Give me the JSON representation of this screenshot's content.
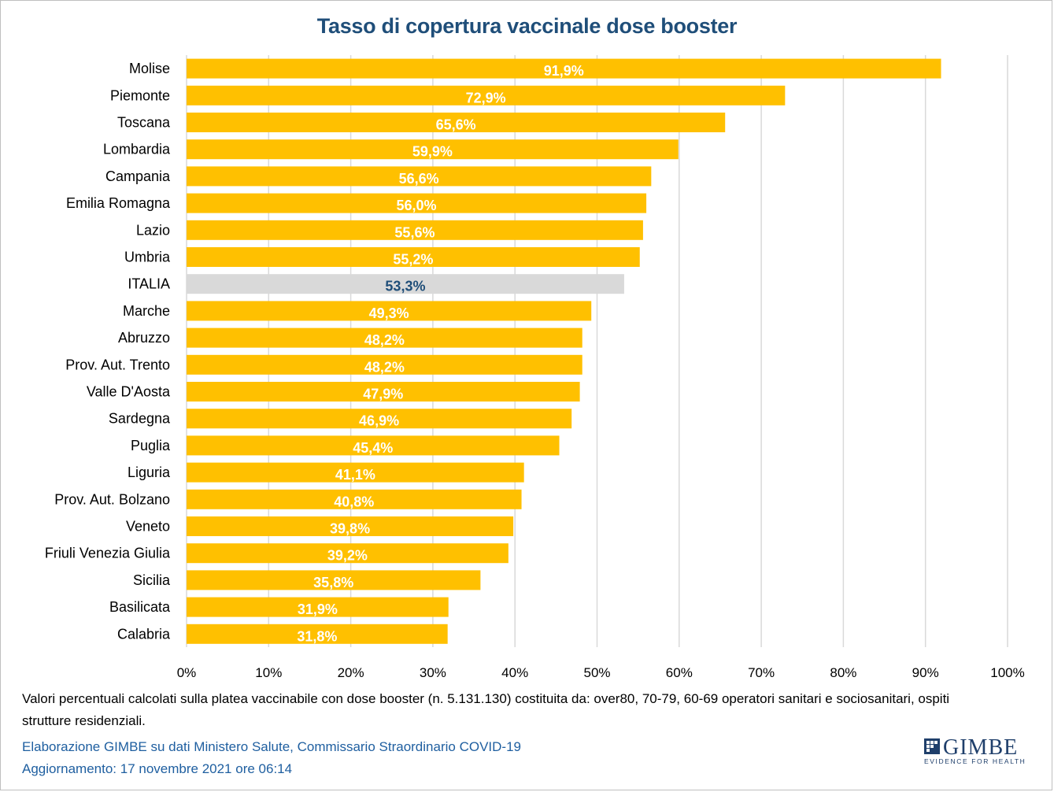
{
  "chart_data": {
    "type": "bar",
    "orientation": "horizontal",
    "title": "Tasso di copertura vaccinale dose booster",
    "categories": [
      "Molise",
      "Piemonte",
      "Toscana",
      "Lombardia",
      "Campania",
      "Emilia Romagna",
      "Lazio",
      "Umbria",
      "ITALIA",
      "Marche",
      "Abruzzo",
      "Prov. Aut. Trento",
      "Valle D'Aosta",
      "Sardegna",
      "Puglia",
      "Liguria",
      "Prov. Aut. Bolzano",
      "Veneto",
      "Friuli Venezia Giulia",
      "Sicilia",
      "Basilicata",
      "Calabria"
    ],
    "values": [
      91.9,
      72.9,
      65.6,
      59.9,
      56.6,
      56.0,
      55.6,
      55.2,
      53.3,
      49.3,
      48.2,
      48.2,
      47.9,
      46.9,
      45.4,
      41.1,
      40.8,
      39.8,
      39.2,
      35.8,
      31.9,
      31.8
    ],
    "data_labels": [
      "91,9%",
      "72,9%",
      "65,6%",
      "59,9%",
      "56,6%",
      "56,0%",
      "55,6%",
      "55,2%",
      "53,3%",
      "49,3%",
      "48,2%",
      "48,2%",
      "47,9%",
      "46,9%",
      "45,4%",
      "41,1%",
      "40,8%",
      "39,8%",
      "39,2%",
      "35,8%",
      "31,9%",
      "31,8%"
    ],
    "highlight_category": "ITALIA",
    "xlim": [
      0,
      100
    ],
    "x_ticks": [
      "0%",
      "10%",
      "20%",
      "30%",
      "40%",
      "50%",
      "60%",
      "70%",
      "80%",
      "90%",
      "100%"
    ],
    "grid": "vertical",
    "colors": {
      "bar": "#ffc000",
      "highlight_bar": "#d9d9d9",
      "label": "#ffffff",
      "highlight_label": "#1f4e79",
      "grid": "#d9d9d9",
      "title": "#1f4e79"
    }
  },
  "footnote": "Valori percentuali calcolati sulla platea vaccinabile con dose booster (n. 5.131.130) costituita da: over80, 70-79, 60-69 operatori sanitari e sociosanitari, ospiti strutture residenziali.",
  "credits": {
    "source": "Elaborazione GIMBE su dati Ministero Salute, Commissario Straordinario COVID-19",
    "updated": "Aggiornamento: 17 novembre 2021 ore 06:14"
  },
  "logo": {
    "name": "GIMBE",
    "tagline": "EVIDENCE FOR HEALTH"
  }
}
